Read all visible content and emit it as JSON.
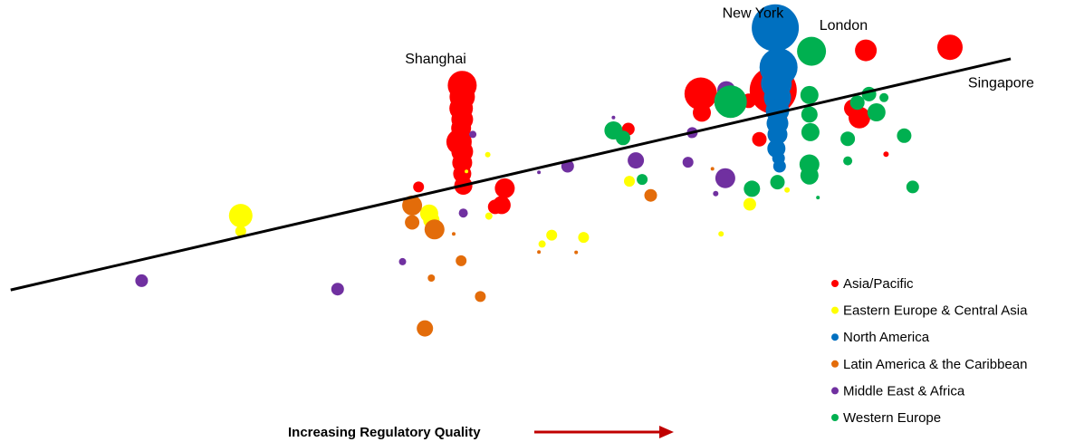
{
  "chart_data": {
    "type": "scatter",
    "title": "",
    "xlabel": "Increasing Regulatory Quality",
    "ylabel": "",
    "xlim": [
      0,
      100
    ],
    "ylim": [
      0,
      100
    ],
    "grid": false,
    "legend_position": "bottom-right",
    "colors": {
      "Asia/Pacific": "#ff0000",
      "Eastern Europe & Central Asia": "#ffff00",
      "North America": "#0070c0",
      "Latin America & the Caribbean": "#e36c0a",
      "Middle East & Africa": "#7030a0",
      "Western Europe": "#00b050",
      "arrow": "#c00000",
      "trendline": "#000000"
    },
    "trendline": {
      "x": [
        1.0,
        94.9
      ],
      "y": [
        34.4,
        86.7
      ]
    },
    "annotations": [
      {
        "text": "New York",
        "x": 70.7,
        "y": 96.0
      },
      {
        "text": "London",
        "x": 79.2,
        "y": 93.2
      },
      {
        "text": "Shanghai",
        "x": 40.9,
        "y": 85.7
      },
      {
        "text": "Singapore",
        "x": 94.0,
        "y": 80.2
      }
    ],
    "series": [
      {
        "name": "Asia/Pacific",
        "points": [
          [
            43.4,
            80.7,
            16
          ],
          [
            43.4,
            78.1,
            14
          ],
          [
            43.3,
            75.5,
            13
          ],
          [
            43.4,
            73.0,
            12
          ],
          [
            43.3,
            71.0,
            11
          ],
          [
            43.1,
            67.9,
            14
          ],
          [
            43.4,
            65.7,
            12
          ],
          [
            43.4,
            63.2,
            11
          ],
          [
            43.4,
            60.7,
            10
          ],
          [
            43.5,
            58.0,
            10
          ],
          [
            47.4,
            57.4,
            11
          ],
          [
            47.1,
            53.6,
            10
          ],
          [
            46.5,
            53.2,
            8
          ],
          [
            39.3,
            57.7,
            6
          ],
          [
            59.0,
            70.8,
            7
          ],
          [
            65.8,
            78.8,
            18
          ],
          [
            65.9,
            74.5,
            10
          ],
          [
            70.3,
            77.2,
            8
          ],
          [
            72.6,
            79.6,
            26
          ],
          [
            73.1,
            72.7,
            10
          ],
          [
            71.3,
            68.5,
            8
          ],
          [
            81.3,
            88.6,
            12
          ],
          [
            89.2,
            89.3,
            14
          ],
          [
            80.7,
            73.4,
            12
          ],
          [
            80.1,
            75.5,
            10
          ],
          [
            83.2,
            65.1,
            3
          ]
        ]
      },
      {
        "name": "Eastern Europe & Central Asia",
        "points": [
          [
            22.6,
            51.2,
            13
          ],
          [
            22.6,
            47.7,
            6
          ],
          [
            40.3,
            51.7,
            10
          ],
          [
            40.5,
            50.2,
            9
          ],
          [
            45.9,
            51.1,
            4
          ],
          [
            45.8,
            65.0,
            3
          ],
          [
            51.8,
            46.8,
            6
          ],
          [
            50.9,
            44.8,
            4
          ],
          [
            54.8,
            46.3,
            6
          ],
          [
            59.1,
            59.0,
            6
          ],
          [
            70.4,
            53.8,
            7
          ],
          [
            67.7,
            47.1,
            3
          ],
          [
            73.9,
            57.0,
            3
          ],
          [
            43.8,
            61.2,
            2
          ]
        ]
      },
      {
        "name": "North America",
        "points": [
          [
            72.8,
            93.7,
            26
          ],
          [
            73.1,
            84.8,
            21
          ],
          [
            72.9,
            81.1,
            17
          ],
          [
            73.0,
            77.9,
            15
          ],
          [
            73.0,
            75.0,
            13
          ],
          [
            73.0,
            72.1,
            12
          ],
          [
            73.0,
            69.6,
            11
          ],
          [
            72.9,
            66.4,
            10
          ],
          [
            73.1,
            64.2,
            7
          ],
          [
            73.2,
            62.4,
            7
          ]
        ]
      },
      {
        "name": "Latin America & the Caribbean",
        "points": [
          [
            38.7,
            53.5,
            11
          ],
          [
            38.7,
            49.7,
            8
          ],
          [
            40.8,
            48.1,
            11
          ],
          [
            43.3,
            41.0,
            6
          ],
          [
            40.5,
            37.1,
            4
          ],
          [
            45.1,
            32.9,
            6
          ],
          [
            39.9,
            25.7,
            9
          ],
          [
            61.1,
            55.8,
            7
          ],
          [
            50.6,
            43.0,
            2
          ],
          [
            54.1,
            42.9,
            2
          ],
          [
            42.6,
            47.1,
            2
          ],
          [
            66.9,
            61.8,
            2
          ]
        ]
      },
      {
        "name": "Middle East & Africa",
        "points": [
          [
            13.3,
            36.5,
            7
          ],
          [
            31.7,
            34.6,
            7
          ],
          [
            37.8,
            40.8,
            4
          ],
          [
            44.4,
            69.6,
            4
          ],
          [
            53.3,
            62.4,
            7
          ],
          [
            59.7,
            63.7,
            9
          ],
          [
            65.0,
            70.0,
            6
          ],
          [
            64.6,
            63.3,
            6
          ],
          [
            68.1,
            59.7,
            11
          ],
          [
            68.2,
            79.6,
            10
          ],
          [
            67.2,
            56.2,
            3
          ],
          [
            64.9,
            69.6,
            4
          ],
          [
            50.6,
            61.0,
            2
          ],
          [
            43.5,
            51.8,
            5
          ],
          [
            57.6,
            73.4,
            2
          ]
        ]
      },
      {
        "name": "Western Europe",
        "points": [
          [
            76.2,
            88.4,
            16
          ],
          [
            68.6,
            77.0,
            18
          ],
          [
            76.0,
            78.5,
            10
          ],
          [
            76.0,
            74.1,
            9
          ],
          [
            76.3,
            70.3,
            4
          ],
          [
            76.1,
            70.1,
            10
          ],
          [
            76.0,
            62.8,
            11
          ],
          [
            76.0,
            60.3,
            10
          ],
          [
            73.0,
            58.8,
            8
          ],
          [
            70.6,
            57.3,
            9
          ],
          [
            79.6,
            68.6,
            8
          ],
          [
            80.5,
            76.8,
            8
          ],
          [
            81.6,
            78.7,
            8
          ],
          [
            82.3,
            74.6,
            10
          ],
          [
            83.0,
            77.9,
            5
          ],
          [
            84.9,
            69.3,
            8
          ],
          [
            79.6,
            63.6,
            5
          ],
          [
            85.7,
            57.7,
            7
          ],
          [
            57.6,
            70.5,
            10
          ],
          [
            58.5,
            68.8,
            8
          ],
          [
            60.3,
            59.4,
            6
          ],
          [
            76.8,
            55.3,
            2
          ]
        ]
      }
    ]
  }
}
